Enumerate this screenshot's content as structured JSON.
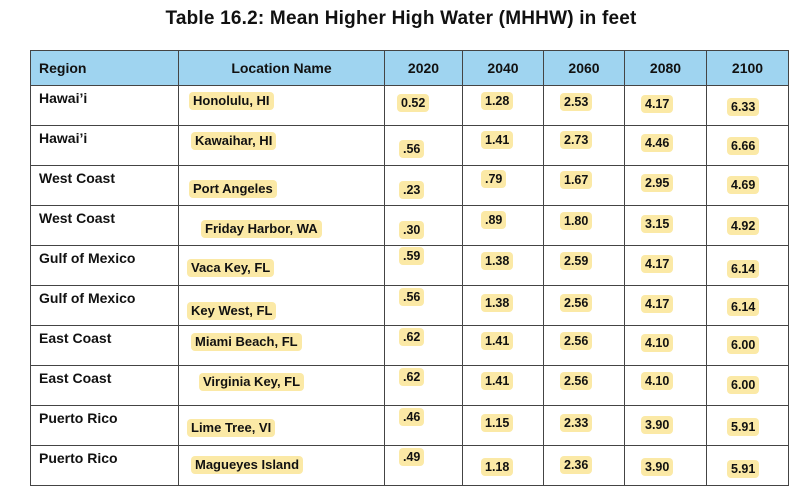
{
  "title": "Table 16.2: Mean Higher High Water (MHHW) in feet",
  "table": {
    "headers": [
      "Region",
      "Location Name",
      "2020",
      "2040",
      "2060",
      "2080",
      "2100"
    ],
    "rows": [
      {
        "region": "Hawai’i",
        "location": "Honolulu, HI",
        "v2020": "0.52",
        "v2040": "1.28",
        "v2060": "2.53",
        "v2080": "4.17",
        "v2100": "6.33"
      },
      {
        "region": "Hawai’i",
        "location": "Kawaihar, HI",
        "v2020": ".56",
        "v2040": "1.41",
        "v2060": "2.73",
        "v2080": "4.46",
        "v2100": "6.66"
      },
      {
        "region": "West Coast",
        "location": "Port Angeles",
        "v2020": ".23",
        "v2040": ".79",
        "v2060": "1.67",
        "v2080": "2.95",
        "v2100": "4.69"
      },
      {
        "region": "West Coast",
        "location": "Friday Harbor, WA",
        "v2020": ".30",
        "v2040": ".89",
        "v2060": "1.80",
        "v2080": "3.15",
        "v2100": "4.92"
      },
      {
        "region": "Gulf of Mexico",
        "location": "Vaca Key, FL",
        "v2020": ".59",
        "v2040": "1.38",
        "v2060": "2.59",
        "v2080": "4.17",
        "v2100": "6.14"
      },
      {
        "region": "Gulf of Mexico",
        "location": "Key West, FL",
        "v2020": ".56",
        "v2040": "1.38",
        "v2060": "2.56",
        "v2080": "4.17",
        "v2100": "6.14"
      },
      {
        "region": "East Coast",
        "location": "Miami Beach, FL",
        "v2020": ".62",
        "v2040": "1.41",
        "v2060": "2.56",
        "v2080": "4.10",
        "v2100": "6.00"
      },
      {
        "region": "East Coast",
        "location": "Virginia Key, FL",
        "v2020": ".62",
        "v2040": "1.41",
        "v2060": "2.56",
        "v2080": "4.10",
        "v2100": "6.00"
      },
      {
        "region": "Puerto Rico",
        "location": "Lime Tree, VI",
        "v2020": ".46",
        "v2040": "1.15",
        "v2060": "2.33",
        "v2080": "3.90",
        "v2100": "5.91"
      },
      {
        "region": "Puerto Rico",
        "location": "Magueyes Island",
        "v2020": ".49",
        "v2040": "1.18",
        "v2060": "2.36",
        "v2080": "3.90",
        "v2100": "5.91"
      }
    ]
  },
  "colors": {
    "header_fill": "#9fd4f0",
    "highlight": "#fbe9a6",
    "border": "#444444"
  }
}
